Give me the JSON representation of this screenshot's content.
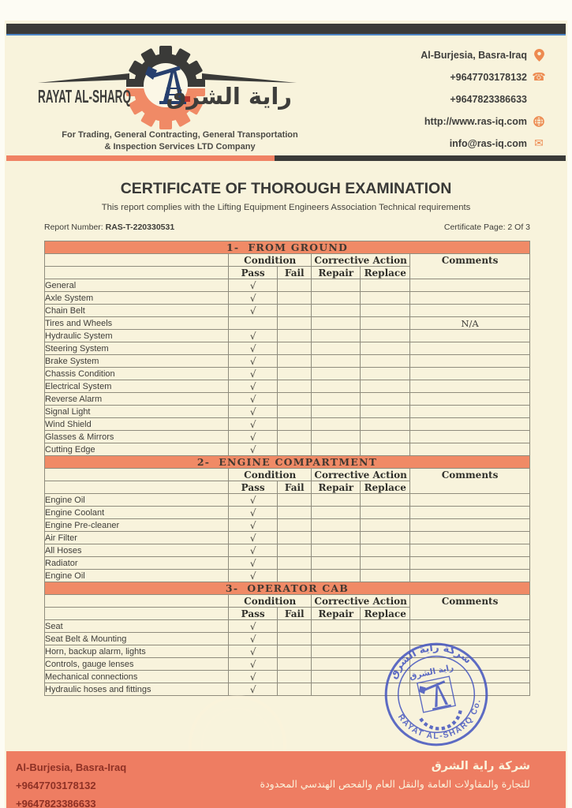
{
  "header": {
    "company_name": "RAYAT AL-SHARQ",
    "company_name_arabic": "راية الشرق",
    "tagline_line1": "For Trading, General Contracting, General Transportation",
    "tagline_line2": "& Inspection Services LTD Company",
    "contacts": [
      {
        "text": "Al-Burjesia, Basra-Iraq",
        "icon": "location-pin-icon"
      },
      {
        "text": "+9647703178132",
        "icon": "phone-icon"
      },
      {
        "text": "+9647823386633",
        "icon": ""
      },
      {
        "text": "http://www.ras-iq.com",
        "icon": "globe-icon"
      },
      {
        "text": "info@ras-iq.com",
        "icon": "envelope-icon"
      }
    ]
  },
  "title": "CERTIFICATE OF THOROUGH EXAMINATION",
  "subtitle": "This report complies with the Lifting Equipment Engineers Association Technical requirements",
  "report": {
    "label": "Report Number: ",
    "number": "RAS-T-220330531",
    "page_label": "Certificate Page: 2 Of 3"
  },
  "table_headers": {
    "condition": "Condition",
    "corrective_action": "Corrective Action",
    "comments": "Comments",
    "pass": "Pass",
    "fail": "Fail",
    "repair": "Repair",
    "replace": "Replace"
  },
  "checkmark": "√",
  "sections": [
    {
      "title": "1-  FROM GROUND",
      "rows": [
        {
          "item": "General",
          "pass": true,
          "comment": ""
        },
        {
          "item": "Axle System",
          "pass": true,
          "comment": ""
        },
        {
          "item": "Chain Belt",
          "pass": true,
          "comment": ""
        },
        {
          "item": "Tires and Wheels",
          "pass": false,
          "comment": "N/A"
        },
        {
          "item": "Hydraulic System",
          "pass": true,
          "comment": ""
        },
        {
          "item": "Steering System",
          "pass": true,
          "comment": ""
        },
        {
          "item": "Brake System",
          "pass": true,
          "comment": ""
        },
        {
          "item": "Chassis Condition",
          "pass": true,
          "comment": ""
        },
        {
          "item": "Electrical System",
          "pass": true,
          "comment": ""
        },
        {
          "item": "Reverse Alarm",
          "pass": true,
          "comment": ""
        },
        {
          "item": "Signal Light",
          "pass": true,
          "comment": ""
        },
        {
          "item": "Wind Shield",
          "pass": true,
          "comment": ""
        },
        {
          "item": "Glasses & Mirrors",
          "pass": true,
          "comment": ""
        },
        {
          "item": "Cutting Edge",
          "pass": true,
          "comment": ""
        }
      ]
    },
    {
      "title": "2-  ENGINE COMPARTMENT",
      "rows": [
        {
          "item": "Engine Oil",
          "pass": true,
          "comment": ""
        },
        {
          "item": "Engine Coolant",
          "pass": true,
          "comment": ""
        },
        {
          "item": "Engine Pre-cleaner",
          "pass": true,
          "comment": ""
        },
        {
          "item": "Air Filter",
          "pass": true,
          "comment": ""
        },
        {
          "item": "All Hoses",
          "pass": true,
          "comment": ""
        },
        {
          "item": "Radiator",
          "pass": true,
          "comment": ""
        },
        {
          "item": "Engine Oil",
          "pass": true,
          "comment": ""
        }
      ]
    },
    {
      "title": "3-  OPERATOR CAB",
      "rows": [
        {
          "item": "Seat",
          "pass": true,
          "comment": ""
        },
        {
          "item": "Seat Belt & Mounting",
          "pass": true,
          "comment": ""
        },
        {
          "item": "Horn, backup alarm, lights",
          "pass": true,
          "comment": ""
        },
        {
          "item": "Controls, gauge lenses",
          "pass": true,
          "comment": ""
        },
        {
          "item": "Mechanical connections",
          "pass": true,
          "comment": ""
        },
        {
          "item": "Hydraulic hoses and fittings",
          "pass": true,
          "comment": ""
        }
      ]
    }
  ],
  "stamp": {
    "top_arabic": "شركة راية الشرق",
    "inner_arabic": "راية الشرق",
    "bottom_text": "RAYAT AL-SHARQ Co."
  },
  "watermark_text": "RAYAT AL-SHARQ Co",
  "footer": {
    "address": "Al-Burjesia, Basra-Iraq",
    "phone1": "+9647703178132",
    "phone2": "+9647823386633",
    "company_arabic": "شركة راية الشرق",
    "description_arabic": "للتجارة والمقاولات العامة والنقل العام والفحص الهندسي المحدودة"
  },
  "colors": {
    "paper": "#f8f3dc",
    "accent_orange": "#f08a66",
    "divider_orange": "#f08264",
    "footer_salmon": "#ee7d62",
    "dark_bar": "#3a3a38",
    "blue_line": "#4e86c6",
    "table_border": "#8f8c7d",
    "footer_text_maroon": "#8e3125",
    "stamp_blue": "#4354bf",
    "icon_orange": "#ed8a50"
  }
}
